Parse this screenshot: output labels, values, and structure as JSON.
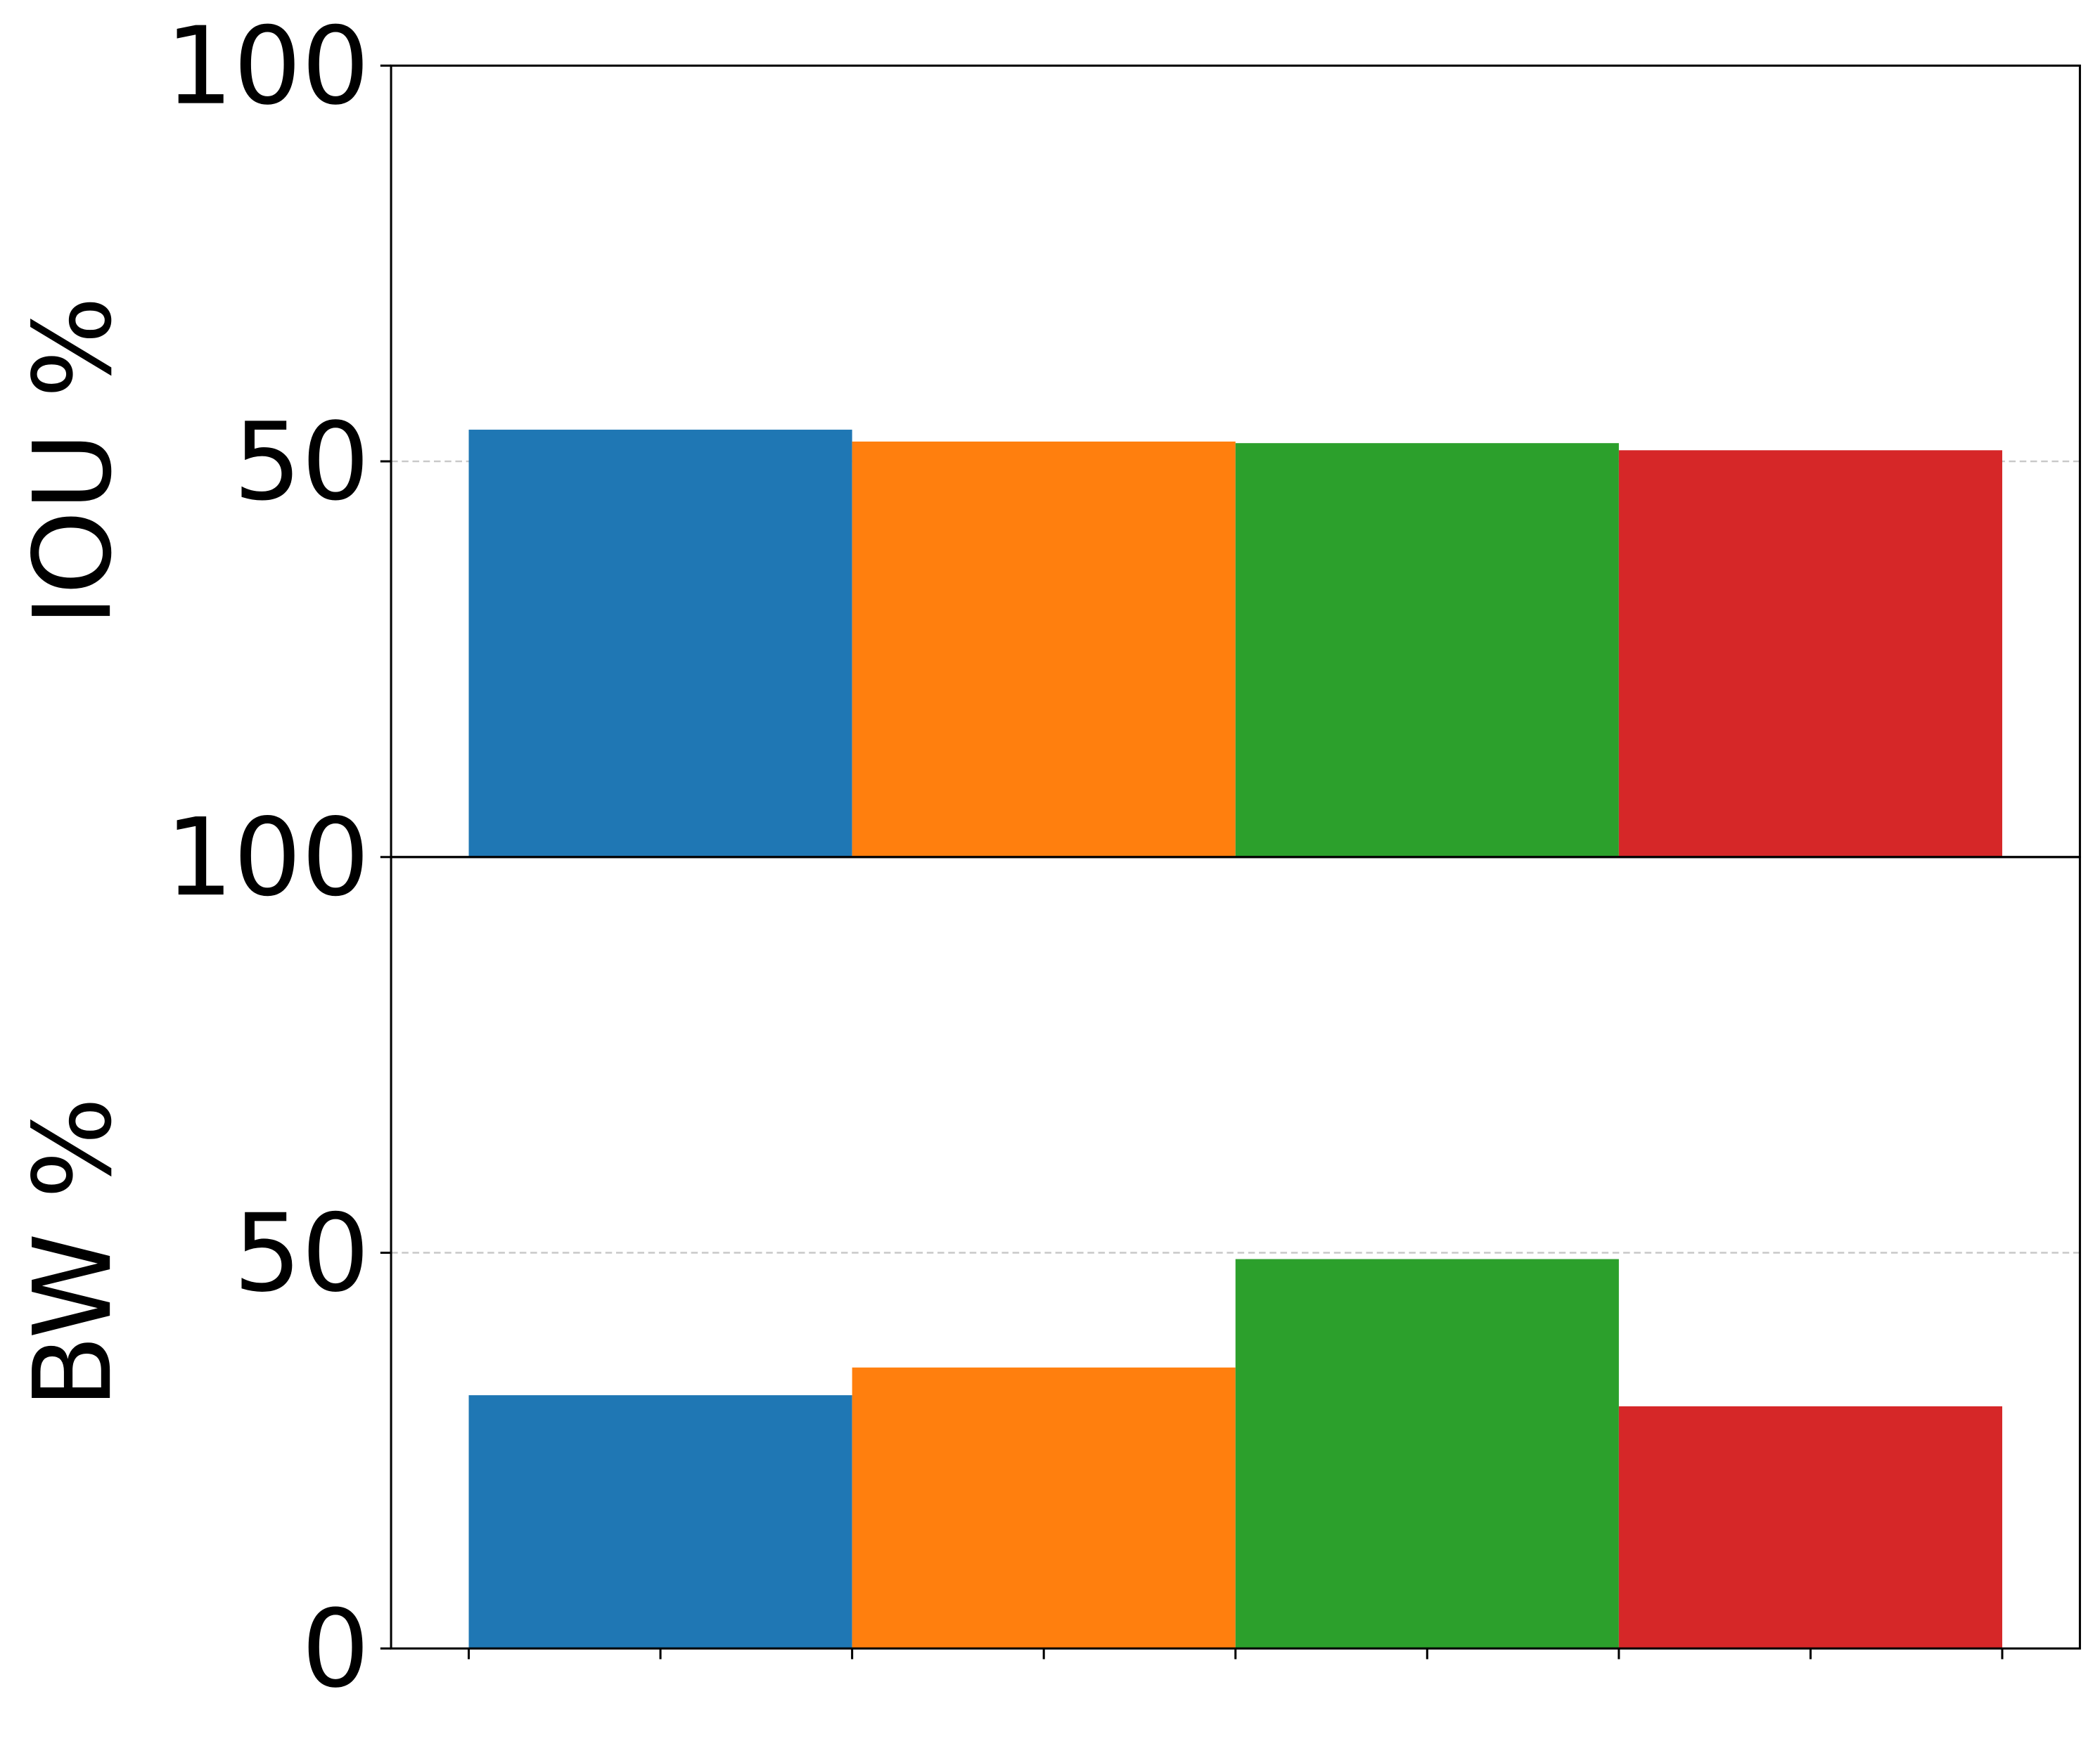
{
  "chart_data": [
    {
      "type": "bar",
      "ylabel": "IOU %",
      "categories": [
        null,
        null,
        null,
        null
      ],
      "values": [
        54.0,
        52.5,
        52.3,
        51.4
      ],
      "colors": [
        "#1f77b4",
        "#ff7f0e",
        "#2ca02c",
        "#d62728"
      ],
      "ylim": [
        0,
        100
      ],
      "yticks": [
        50,
        100
      ],
      "grid": true
    },
    {
      "type": "bar",
      "ylabel": "BW %",
      "categories": [
        null,
        null,
        null,
        null
      ],
      "values": [
        32.0,
        35.5,
        49.2,
        30.6
      ],
      "colors": [
        "#1f77b4",
        "#ff7f0e",
        "#2ca02c",
        "#d62728"
      ],
      "ylim": [
        0,
        100
      ],
      "yticks": [
        0,
        50,
        100
      ],
      "grid": true
    }
  ]
}
